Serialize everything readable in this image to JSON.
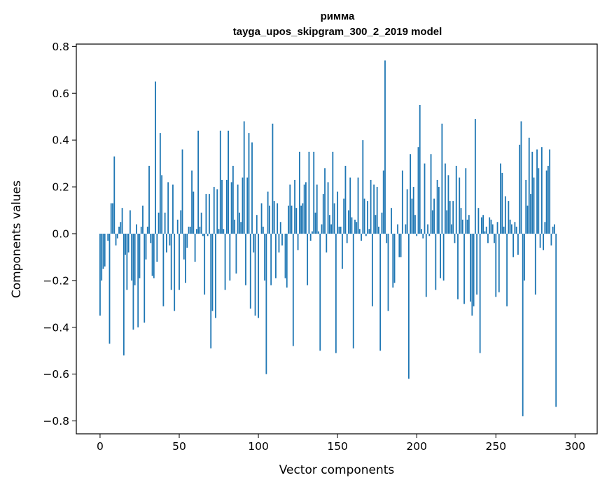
{
  "chart_data": {
    "type": "bar",
    "title": "римма",
    "subtitle": "tayga_upos_skipgram_300_2_2019 model",
    "xlabel": "Vector components",
    "ylabel": "Components values",
    "xlim": [
      -15,
      314
    ],
    "ylim": [
      -0.855,
      0.81
    ],
    "xticks": [
      0,
      50,
      100,
      150,
      200,
      250,
      300
    ],
    "yticks": [
      -0.8,
      -0.6,
      -0.4,
      -0.2,
      0.0,
      0.2,
      0.4,
      0.6,
      0.8
    ],
    "ytick_labels": [
      "−0.8",
      "−0.6",
      "−0.4",
      "−0.2",
      "0.0",
      "0.2",
      "0.4",
      "0.6",
      "0.8"
    ],
    "bar_color": "#1f77b4",
    "values": [
      -0.35,
      -0.2,
      -0.15,
      -0.14,
      0.0,
      -0.03,
      -0.47,
      0.13,
      0.13,
      0.33,
      -0.05,
      -0.02,
      0.03,
      0.05,
      0.11,
      -0.52,
      -0.09,
      -0.24,
      -0.08,
      0.1,
      -0.2,
      -0.41,
      -0.22,
      0.04,
      -0.4,
      -0.19,
      0.03,
      0.12,
      -0.38,
      -0.11,
      0.03,
      0.29,
      -0.04,
      -0.18,
      -0.19,
      0.65,
      -0.12,
      0.09,
      0.43,
      0.25,
      -0.31,
      0.09,
      -0.08,
      0.22,
      -0.05,
      -0.24,
      0.21,
      -0.33,
      0.0,
      0.06,
      -0.24,
      0.1,
      0.36,
      -0.11,
      -0.21,
      -0.06,
      0.03,
      0.03,
      0.27,
      0.18,
      -0.12,
      0.02,
      0.44,
      0.03,
      0.09,
      -0.01,
      -0.26,
      0.17,
      -0.01,
      0.17,
      -0.49,
      -0.33,
      0.2,
      -0.36,
      0.19,
      0.02,
      0.44,
      0.23,
      0.02,
      -0.24,
      0.23,
      0.44,
      -0.2,
      0.22,
      0.29,
      0.06,
      -0.17,
      0.21,
      0.09,
      0.05,
      0.24,
      0.48,
      -0.22,
      0.24,
      0.43,
      -0.32,
      0.39,
      -0.08,
      -0.35,
      0.08,
      -0.36,
      0.0,
      0.13,
      0.03,
      -0.2,
      -0.6,
      0.18,
      0.12,
      -0.22,
      0.47,
      0.14,
      -0.19,
      0.13,
      -0.08,
      0.05,
      -0.05,
      0.0,
      -0.19,
      -0.23,
      0.12,
      0.21,
      0.12,
      -0.48,
      0.23,
      0.11,
      -0.07,
      0.35,
      0.12,
      0.13,
      0.21,
      0.22,
      -0.22,
      0.35,
      -0.03,
      0.01,
      0.35,
      0.09,
      0.21,
      0.01,
      -0.5,
      0.04,
      0.17,
      0.28,
      -0.08,
      0.22,
      0.08,
      0.04,
      0.35,
      0.13,
      -0.51,
      0.18,
      0.03,
      0.03,
      -0.15,
      0.15,
      0.29,
      -0.04,
      0.1,
      0.24,
      0.07,
      -0.49,
      0.06,
      0.05,
      0.24,
      0.02,
      -0.03,
      0.4,
      0.15,
      -0.01,
      0.14,
      0.02,
      0.23,
      -0.31,
      0.21,
      0.08,
      0.2,
      0.03,
      -0.5,
      0.09,
      0.27,
      0.74,
      -0.04,
      -0.33,
      0.0,
      0.11,
      -0.23,
      -0.21,
      0.0,
      0.04,
      -0.1,
      -0.1,
      0.27,
      0.0,
      0.04,
      0.19,
      -0.62,
      0.34,
      0.15,
      0.2,
      0.08,
      -0.01,
      0.37,
      0.55,
      0.02,
      -0.02,
      0.3,
      -0.27,
      0.04,
      -0.01,
      0.34,
      0.1,
      0.15,
      -0.24,
      0.23,
      0.2,
      -0.19,
      0.47,
      -0.2,
      0.3,
      0.1,
      0.25,
      0.14,
      0.04,
      0.14,
      -0.04,
      0.29,
      -0.28,
      0.24,
      0.11,
      0.06,
      -0.3,
      0.28,
      0.06,
      0.08,
      -0.29,
      -0.35,
      -0.31,
      0.49,
      -0.26,
      0.11,
      -0.51,
      0.07,
      0.08,
      0.01,
      0.03,
      -0.04,
      0.07,
      0.06,
      0.04,
      -0.04,
      -0.27,
      0.05,
      -0.25,
      0.3,
      0.26,
      0.03,
      0.16,
      -0.31,
      0.14,
      0.06,
      0.04,
      -0.1,
      0.05,
      0.03,
      -0.09,
      0.38,
      0.48,
      -0.78,
      -0.2,
      0.23,
      0.12,
      0.41,
      0.17,
      0.35,
      0.24,
      -0.26,
      0.36,
      0.28,
      -0.06,
      0.37,
      -0.07,
      0.05,
      0.27,
      0.29,
      0.36,
      -0.05,
      0.03,
      0.04,
      -0.74,
      0.0,
      0.0,
      0.0,
      0.0,
      0.0,
      0.0,
      0.0,
      0.0,
      0.0,
      0.0,
      0.0
    ]
  }
}
